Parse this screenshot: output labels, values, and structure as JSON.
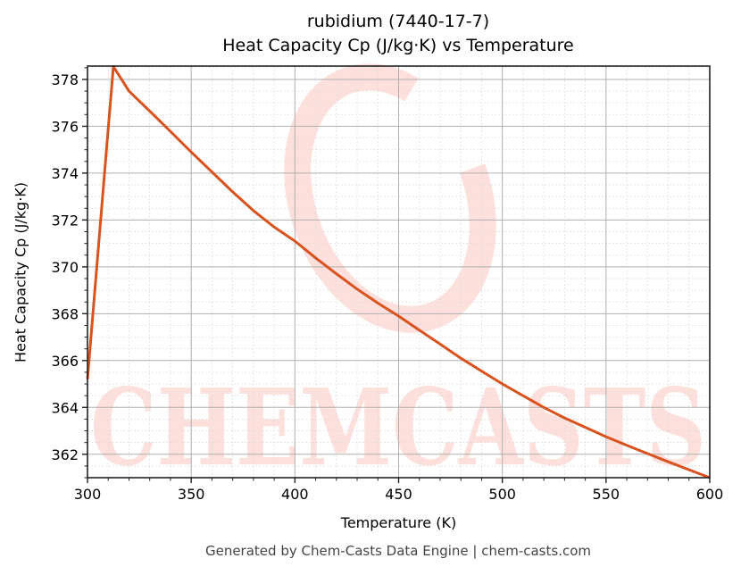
{
  "header": {
    "title_line1": "rubidium (7440-17-7)",
    "title_line2": "Heat Capacity Cp (J/kg·K) vs Temperature"
  },
  "axes": {
    "xlabel": "Temperature (K)",
    "ylabel": "Heat Capacity Cp (J/kg·K)"
  },
  "footer": {
    "text": "Generated by Chem-Casts Data Engine | chem-casts.com"
  },
  "watermark": {
    "text": "CHEMCASTS",
    "color": "#fde0dc"
  },
  "colors": {
    "line": "#d9531e",
    "grid_major": "#b0b0b0",
    "grid_minor": "#dddddd",
    "frame": "#222222"
  },
  "chart_data": {
    "type": "line",
    "title": "rubidium (7440-17-7)\nHeat Capacity Cp (J/kg·K) vs Temperature",
    "xlabel": "Temperature (K)",
    "ylabel": "Heat Capacity Cp (J/kg·K)",
    "xlim": [
      300,
      600
    ],
    "ylim": [
      361.0,
      378.57
    ],
    "xticks": [
      300,
      350,
      400,
      450,
      500,
      550,
      600
    ],
    "yticks": [
      362,
      364,
      366,
      368,
      370,
      372,
      374,
      376,
      378
    ],
    "grid": true,
    "legend": null,
    "series": [
      {
        "name": "Heat Capacity Cp",
        "color": "#d9531e",
        "x": [
          300,
          312.5,
          320,
          330,
          340,
          350,
          360,
          370,
          380,
          390,
          400,
          410,
          420,
          430,
          440,
          450,
          460,
          470,
          480,
          490,
          500,
          510,
          520,
          530,
          540,
          550,
          560,
          570,
          580,
          590,
          600
        ],
        "y": [
          365.2,
          378.55,
          377.5,
          376.65,
          375.78,
          374.9,
          374.05,
          373.2,
          372.4,
          371.7,
          371.1,
          370.38,
          369.7,
          369.05,
          368.45,
          367.9,
          367.3,
          366.7,
          366.1,
          365.55,
          365.0,
          364.5,
          364.0,
          363.55,
          363.15,
          362.75,
          362.38,
          362.03,
          361.68,
          361.34,
          361.0
        ]
      }
    ]
  }
}
